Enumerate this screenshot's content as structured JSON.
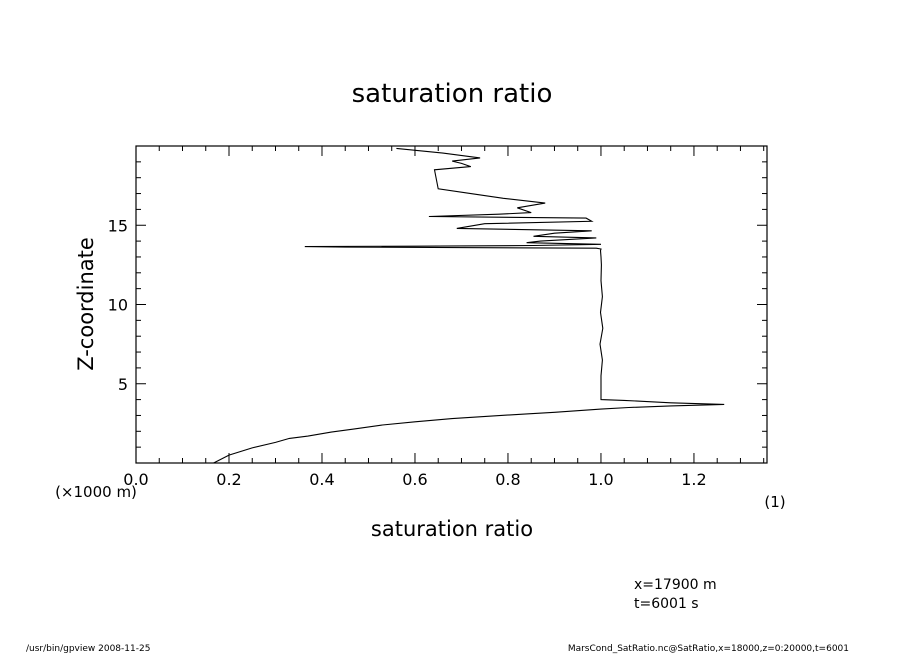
{
  "chart_data": {
    "type": "line",
    "title": "saturation ratio",
    "xlabel": "saturation ratio",
    "xunit": "(1)",
    "ylabel": "Z-coordinate",
    "yunit": "(×1000 m)",
    "xlim": [
      0.0,
      1.3571
    ],
    "ylim": [
      0.0,
      20.0
    ],
    "xticks": [
      "0.0",
      "0.2",
      "0.4",
      "0.6",
      "0.8",
      "1.0",
      "1.2"
    ],
    "yticks": [
      "5",
      "10",
      "15"
    ],
    "grid": false,
    "series": [
      {
        "x": [
          0.167,
          0.2,
          0.25,
          0.3,
          0.33,
          0.37,
          0.42,
          0.47,
          0.53,
          0.6,
          0.68,
          0.76,
          0.84,
          0.9,
          0.95,
          1.0,
          1.06,
          1.15,
          1.265,
          1.15,
          1.05,
          1.0,
          1.0,
          1.003,
          0.998,
          1.004,
          0.999,
          1.003,
          1.0,
          1.001,
          1.0,
          0.999,
          1.0,
          0.99,
          0.45,
          0.363,
          0.6,
          0.855,
          1.0,
          0.84,
          0.87,
          0.99,
          0.855,
          0.9,
          0.98,
          0.69,
          0.75,
          0.98,
          0.968,
          0.63,
          0.78,
          0.85,
          0.82,
          0.88,
          0.79,
          0.72,
          0.65,
          0.642,
          0.72,
          0.7,
          0.68,
          0.74,
          0.66,
          0.56
        ],
        "y": [
          0.0,
          0.5,
          0.95,
          1.3,
          1.55,
          1.7,
          1.95,
          2.15,
          2.4,
          2.6,
          2.8,
          2.95,
          3.1,
          3.2,
          3.3,
          3.4,
          3.5,
          3.6,
          3.7,
          3.8,
          3.95,
          4.0,
          5.5,
          6.5,
          7.5,
          8.5,
          9.5,
          10.5,
          11.5,
          12.5,
          13.0,
          13.4,
          13.5,
          13.55,
          13.62,
          13.65,
          13.68,
          13.72,
          13.8,
          13.9,
          14.0,
          14.2,
          14.3,
          14.5,
          14.65,
          14.8,
          15.1,
          15.25,
          15.45,
          15.55,
          15.7,
          15.8,
          16.1,
          16.4,
          16.7,
          17.0,
          17.3,
          18.5,
          18.7,
          18.9,
          19.05,
          19.25,
          19.55,
          19.85
        ]
      }
    ]
  },
  "info": {
    "x_position": "x=17900  m",
    "time": "t=6001  s"
  },
  "footer": {
    "left": "/usr/bin/gpview   2008-11-25",
    "right": "MarsCond_SatRatio.nc@SatRatio,x=18000,z=0:20000,t=6001"
  }
}
